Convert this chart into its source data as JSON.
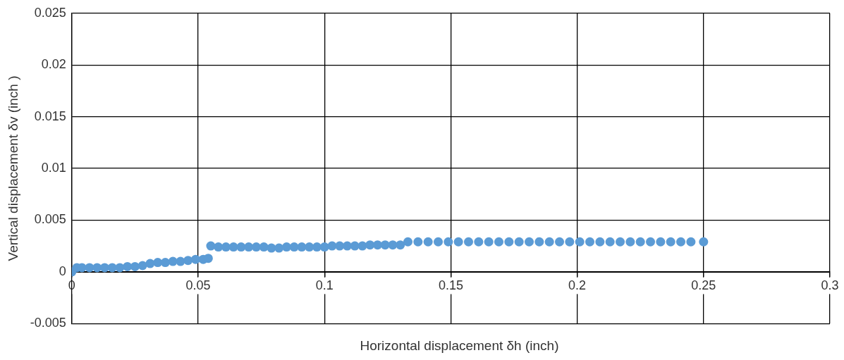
{
  "chart_data": {
    "type": "scatter",
    "xlabel": "Horizontal displacement δh (inch)",
    "ylabel": "Vertical displacement δv (inch )",
    "xlim": [
      0,
      0.3
    ],
    "xticks": [
      0,
      0.05,
      0.1,
      0.15,
      0.2,
      0.25,
      0.3
    ],
    "ylim": [
      -0.005,
      0.025
    ],
    "yticks": [
      -0.005,
      0,
      0.005,
      0.01,
      0.015,
      0.02,
      0.025
    ],
    "grid": true,
    "legend": false,
    "marker": "circle",
    "series": [
      {
        "color": "#5b9bd5",
        "x": [
          0,
          0.002,
          0.004,
          0.007,
          0.01,
          0.013,
          0.016,
          0.019,
          0.022,
          0.025,
          0.028,
          0.031,
          0.034,
          0.037,
          0.04,
          0.043,
          0.046,
          0.049,
          0.052,
          0.054,
          0.055,
          0.058,
          0.061,
          0.064,
          0.067,
          0.07,
          0.073,
          0.076,
          0.079,
          0.082,
          0.085,
          0.088,
          0.091,
          0.094,
          0.097,
          0.1,
          0.103,
          0.106,
          0.109,
          0.112,
          0.115,
          0.118,
          0.121,
          0.124,
          0.127,
          0.13,
          0.133,
          0.137,
          0.141,
          0.145,
          0.149,
          0.153,
          0.157,
          0.161,
          0.165,
          0.169,
          0.173,
          0.177,
          0.181,
          0.185,
          0.189,
          0.193,
          0.197,
          0.201,
          0.205,
          0.209,
          0.213,
          0.217,
          0.221,
          0.225,
          0.229,
          0.233,
          0.237,
          0.241,
          0.245,
          0.25
        ],
        "values": [
          0,
          0.0004,
          0.0004,
          0.0004,
          0.0004,
          0.0004,
          0.0004,
          0.0004,
          0.0005,
          0.0005,
          0.0006,
          0.0008,
          0.0009,
          0.0009,
          0.001,
          0.001,
          0.0011,
          0.0012,
          0.0012,
          0.0013,
          0.0025,
          0.0024,
          0.0024,
          0.0024,
          0.0024,
          0.0024,
          0.0024,
          0.0024,
          0.0023,
          0.0023,
          0.0024,
          0.0024,
          0.0024,
          0.0024,
          0.0024,
          0.0024,
          0.0025,
          0.0025,
          0.0025,
          0.0025,
          0.0025,
          0.0026,
          0.0026,
          0.0026,
          0.0026,
          0.0026,
          0.0029,
          0.0029,
          0.0029,
          0.0029,
          0.0029,
          0.0029,
          0.0029,
          0.0029,
          0.0029,
          0.0029,
          0.0029,
          0.0029,
          0.0029,
          0.0029,
          0.0029,
          0.0029,
          0.0029,
          0.0029,
          0.0029,
          0.0029,
          0.0029,
          0.0029,
          0.0029,
          0.0029,
          0.0029,
          0.0029,
          0.0029,
          0.0029,
          0.0029,
          0.0029
        ]
      }
    ]
  }
}
